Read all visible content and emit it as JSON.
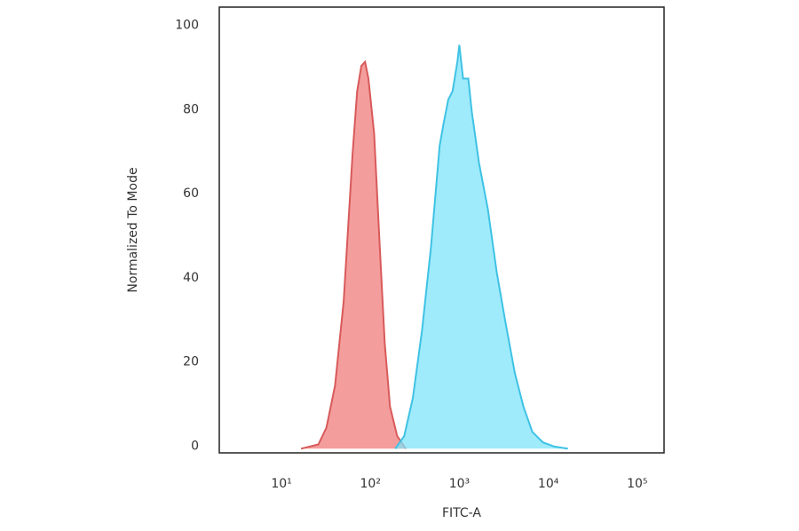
{
  "chart_data": {
    "type": "area",
    "x_label": "FITC-A",
    "y_label": "Normalized To Mode",
    "xscale": "log",
    "xlim": [
      2,
      200000
    ],
    "ylim": [
      -1,
      105
    ],
    "xticks": [
      {
        "value": 10,
        "label": "10¹"
      },
      {
        "value": 100,
        "label": "10²"
      },
      {
        "value": 1000,
        "label": "10³"
      },
      {
        "value": 10000,
        "label": "10⁴"
      },
      {
        "value": 100000,
        "label": "10⁵"
      }
    ],
    "yticks": [
      0,
      20,
      40,
      60,
      80,
      100
    ],
    "grid": false,
    "series": [
      {
        "color": "#f07c7c",
        "edge": "#d85a5a",
        "x": [
          16.6,
          26,
          32,
          40,
          50,
          63,
          71,
          79,
          87,
          95,
          110,
          126,
          145,
          166,
          200,
          250
        ],
        "values": [
          0,
          1,
          5,
          15,
          35,
          70,
          85,
          91,
          92,
          88,
          75,
          50,
          25,
          10,
          3,
          0
        ]
      },
      {
        "color": "#7fe4fa",
        "edge": "#3fc2e4",
        "x": [
          190,
          240,
          300,
          380,
          480,
          600,
          660,
          750,
          840,
          950,
          1000,
          1100,
          1260,
          1380,
          1660,
          2090,
          2630,
          3300,
          4200,
          5250,
          6600,
          8700,
          11700,
          16600
        ],
        "values": [
          0,
          3,
          12,
          28,
          48,
          72,
          77,
          83,
          85,
          92,
          96,
          88,
          88,
          80,
          68,
          57,
          42,
          30,
          18,
          10,
          4,
          1.5,
          0.5,
          0
        ]
      }
    ]
  }
}
